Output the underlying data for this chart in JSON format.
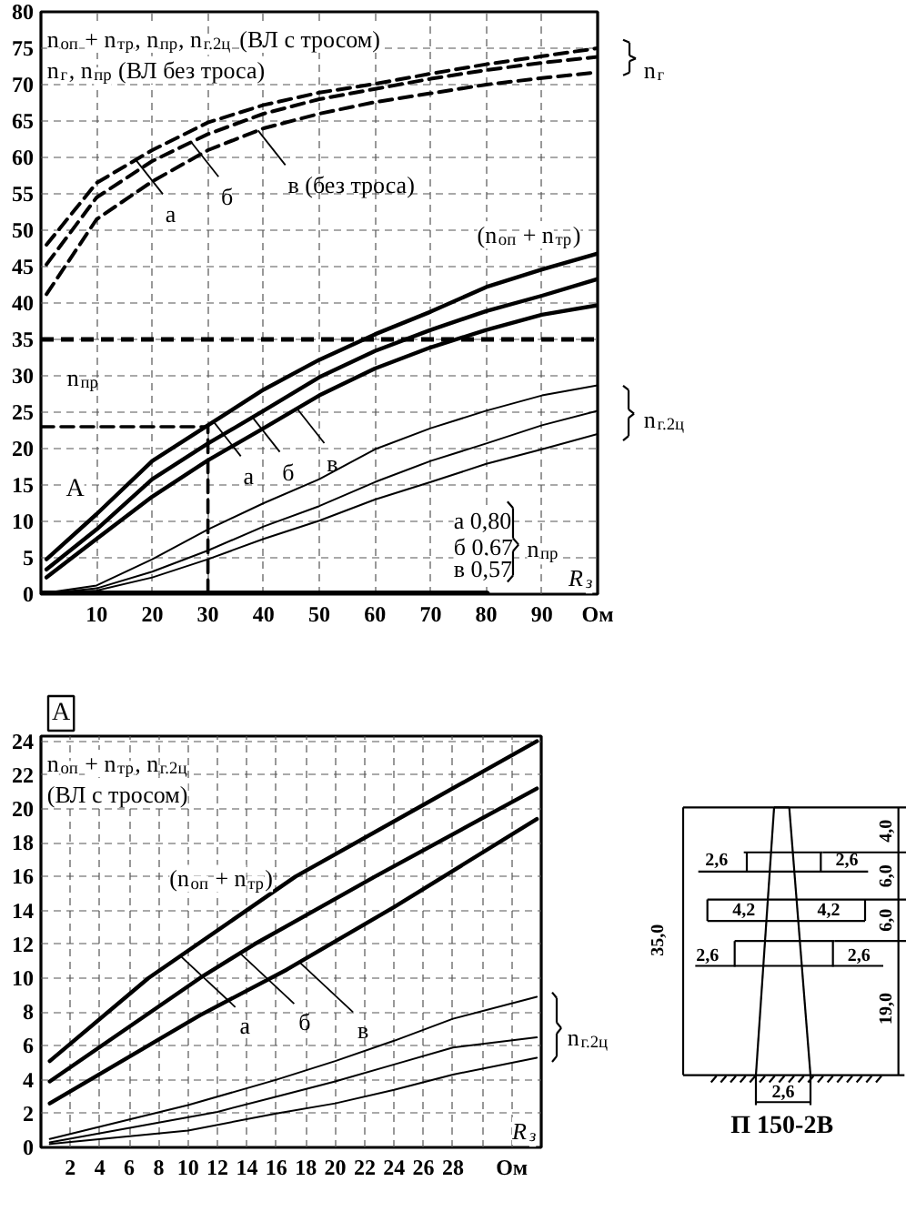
{
  "chart_data": [
    {
      "type": "line",
      "ylabel": "n$_{оп}$ + n$_{тр}$, n$_{пр}$, n$_{г.2ц}$ (ВЛ с тросом)\nn$_{г}$, n$_{пр}$ (ВЛ без троса)",
      "xlabel": "R$_{з}$",
      "x": [
        1,
        10,
        20,
        30,
        40,
        50,
        60,
        70,
        80,
        90,
        100
      ],
      "series": [
        {
          "color": "#000000",
          "line_style": "dashed",
          "values": [
            48,
            56.5,
            61,
            64.8,
            67.2,
            68.9,
            70.1,
            71.5,
            72.8,
            73.9,
            75
          ]
        },
        {
          "color": "#000000",
          "line_style": "dashed",
          "values": [
            45.3,
            54.5,
            59.5,
            63.2,
            66,
            68,
            69.4,
            70.8,
            72,
            73,
            73.8
          ]
        },
        {
          "color": "#000000",
          "line_style": "dashed",
          "values": [
            41.2,
            51.5,
            56.7,
            61,
            64,
            66,
            67.6,
            68.8,
            70,
            70.9,
            71.7
          ]
        },
        {
          "color": "#000000",
          "values": [
            4.8,
            11,
            18.3,
            23.2,
            28.1,
            32.2,
            35.7,
            38.8,
            42.2,
            44.6,
            46.8
          ]
        },
        {
          "color": "#000000",
          "values": [
            3.4,
            8.9,
            15.8,
            20.7,
            25.2,
            29.8,
            33.4,
            36.3,
            38.9,
            41,
            43.3
          ]
        },
        {
          "color": "#000000",
          "values": [
            2.3,
            7.6,
            13.4,
            18.4,
            22.8,
            27.3,
            31,
            33.9,
            36.3,
            38.4,
            39.7
          ]
        },
        {
          "color": "#000000",
          "values": [
            0.2,
            1.2,
            4.8,
            8.9,
            12.5,
            15.8,
            19.9,
            22.8,
            25.2,
            27.3,
            28.7
          ]
        },
        {
          "color": "#000000",
          "values": [
            0.1,
            0.8,
            3.1,
            6,
            9.3,
            12.1,
            15.4,
            18.3,
            20.7,
            23.2,
            25.2
          ]
        },
        {
          "color": "#000000",
          "values": [
            0.1,
            0.5,
            2.3,
            4.8,
            7.6,
            10.1,
            13,
            15.4,
            17.9,
            19.9,
            22
          ]
        },
        {
          "color": "#000000",
          "line_style": "dashed",
          "x": [
            0,
            30,
            30
          ],
          "values": [
            23,
            23,
            0
          ]
        },
        {
          "color": "#000000",
          "x": [
            0,
            80
          ],
          "values": [
            0,
            0
          ]
        }
      ],
      "xlim": [
        0,
        100
      ],
      "xticks": [
        10,
        20,
        30,
        40,
        50,
        60,
        70,
        80,
        90,
        {
          "value": 100,
          "label": "Ом"
        }
      ],
      "ylim": [
        0,
        80
      ],
      "yticks": [
        0,
        5,
        10,
        15,
        20,
        25,
        30,
        35,
        40,
        45,
        50,
        55,
        60,
        65,
        70,
        75,
        80
      ],
      "grid": true,
      "ref_lines": [
        {
          "axis": "y",
          "value": 35,
          "label": "n$_{пр}$",
          "line_style": "dashed"
        }
      ],
      "annotations": [
        {
          "text": "а",
          "x": 17,
          "y": 59.7
        },
        {
          "text": "б",
          "x": 27,
          "y": 62.1
        },
        {
          "text": "в (без троса)",
          "x": 39,
          "y": 63.7
        },
        {
          "text": "а",
          "x": 31,
          "y": 23.7
        },
        {
          "text": "б",
          "x": 38,
          "y": 24.3
        },
        {
          "text": "в",
          "x": 46,
          "y": 25.5
        },
        "(n$_{оп}$ + n$_{тр}$)",
        "А",
        "а 0,80",
        "б 0,67",
        "в 0,57",
        "n$_{пр}$",
        "n$_{г}$",
        "n$_{г.2ц}$"
      ]
    },
    {
      "type": "line",
      "title": "А",
      "ylabel": "n$_{оп}$ + n$_{тр}$, n$_{г.2ц}$\n(ВЛ с тросом)",
      "xlabel": "R$_{з}$",
      "series": [
        {
          "color": "#000000",
          "x": [
            0.6,
            7.3,
            17.3,
            25.5,
            33.7
          ],
          "values": [
            5.1,
            10,
            16,
            20,
            24
          ]
        },
        {
          "color": "#000000",
          "x": [
            0.6,
            10.8,
            14.5,
            22.7,
            33.7
          ],
          "values": [
            3.9,
            10,
            12,
            16,
            21.2
          ]
        },
        {
          "color": "#000000",
          "x": [
            0.6,
            10.8,
            16.7,
            24,
            33.7
          ],
          "values": [
            2.6,
            7.8,
            10.5,
            14.2,
            19.4
          ]
        },
        {
          "color": "#000000",
          "x": [
            0.6,
            10,
            16,
            20,
            24,
            28,
            33.7
          ],
          "values": [
            0.5,
            2.5,
            4,
            5.1,
            6.3,
            7.6,
            8.9
          ]
        },
        {
          "color": "#000000",
          "x": [
            0.6,
            12,
            16,
            20,
            24,
            28,
            33.7
          ],
          "values": [
            0.3,
            2.1,
            3,
            3.9,
            4.9,
            5.9,
            6.5
          ]
        },
        {
          "color": "#000000",
          "x": [
            0.6,
            10,
            16,
            20,
            24,
            28,
            33.7
          ],
          "values": [
            0.2,
            1,
            2,
            2.6,
            3.4,
            4.3,
            5.3
          ]
        }
      ],
      "xlim": [
        0,
        34
      ],
      "xticks": [
        2,
        4,
        6,
        8,
        10,
        12,
        14,
        16,
        18,
        20,
        22,
        24,
        26,
        28,
        {
          "value": 30,
          "label": null
        },
        {
          "value": 32,
          "label": "Ом"
        }
      ],
      "ylim": [
        0,
        24.3
      ],
      "yticks": [
        0,
        2,
        4,
        6,
        8,
        10,
        12,
        14,
        16,
        18,
        20,
        22,
        24
      ],
      "grid": true,
      "annotations": [
        {
          "text": "а",
          "x": 9.5,
          "y": 11.3
        },
        {
          "text": "б",
          "x": 13.5,
          "y": 11.5
        },
        {
          "text": "в",
          "x": 17.5,
          "y": 11
        },
        "(n$_{оп}$ + n$_{тр}$)",
        "n$_{г.2ц}$"
      ]
    },
    {
      "type": "other",
      "title": "П 150-2В",
      "annotations": [
        "4,0",
        "6,0",
        "6,0",
        "19,0",
        "35,0",
        "2,6",
        "2,6",
        "4,2",
        "4,2",
        "2,6",
        "2,6",
        "2,6"
      ]
    }
  ]
}
